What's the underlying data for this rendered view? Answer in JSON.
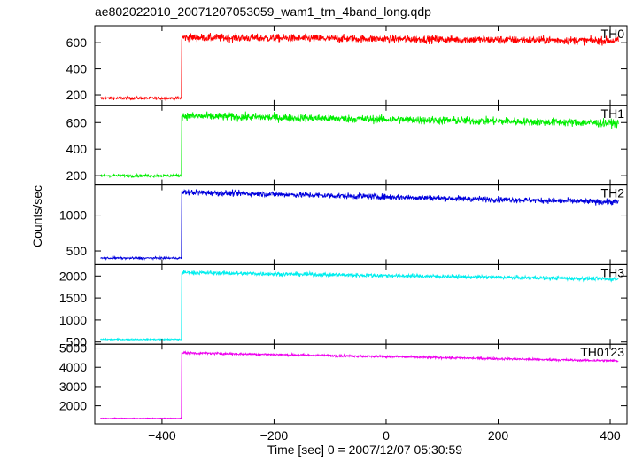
{
  "chart_data": {
    "type": "line",
    "title": "ae802022010_20071207053059_wam1_trn_4band_long.qdp",
    "xlabel": "Time [sec] 0 = 2007/12/07 05:30:59",
    "ylabel": "Counts/sec",
    "xlim": [
      -520,
      430
    ],
    "xticks": [
      -400,
      -200,
      0,
      200,
      400
    ],
    "xtick_labels": [
      "−400",
      "−200",
      "0",
      "200",
      "400"
    ],
    "step_time": -365,
    "t_start": -510,
    "t_end": 415,
    "panels": [
      {
        "name": "TH0",
        "color": "#ff0000",
        "ylim": [
          120,
          730
        ],
        "yticks": [
          200,
          400,
          600
        ],
        "ytick_labels": [
          "200",
          "400",
          "600"
        ],
        "pre_level": 175,
        "post_start": 640,
        "post_end": 615,
        "noise": 30
      },
      {
        "name": "TH1",
        "color": "#00ee00",
        "ylim": [
          130,
          730
        ],
        "yticks": [
          200,
          400,
          600
        ],
        "ytick_labels": [
          "200",
          "400",
          "600"
        ],
        "pre_level": 200,
        "post_start": 650,
        "post_end": 595,
        "noise": 30
      },
      {
        "name": "TH2",
        "color": "#0000dd",
        "ylim": [
          310,
          1420
        ],
        "yticks": [
          500,
          1000
        ],
        "ytick_labels": [
          "500",
          "1000"
        ],
        "pre_level": 400,
        "post_start": 1320,
        "post_end": 1180,
        "noise": 40
      },
      {
        "name": "TH3",
        "color": "#00eeee",
        "ylim": [
          450,
          2260
        ],
        "yticks": [
          500,
          1000,
          1500,
          2000
        ],
        "ytick_labels": [
          "500",
          "1000",
          "1500",
          "2000"
        ],
        "pre_level": 560,
        "post_start": 2080,
        "post_end": 1930,
        "noise": 45
      },
      {
        "name": "TH0123",
        "color": "#ee00ee",
        "ylim": [
          1060,
          5200
        ],
        "yticks": [
          2000,
          3000,
          4000,
          5000
        ],
        "ytick_labels": [
          "2000",
          "3000",
          "4000",
          "5000"
        ],
        "pre_level": 1350,
        "post_start": 4750,
        "post_end": 4330,
        "noise": 60
      }
    ],
    "grid": false,
    "legend": "none"
  }
}
